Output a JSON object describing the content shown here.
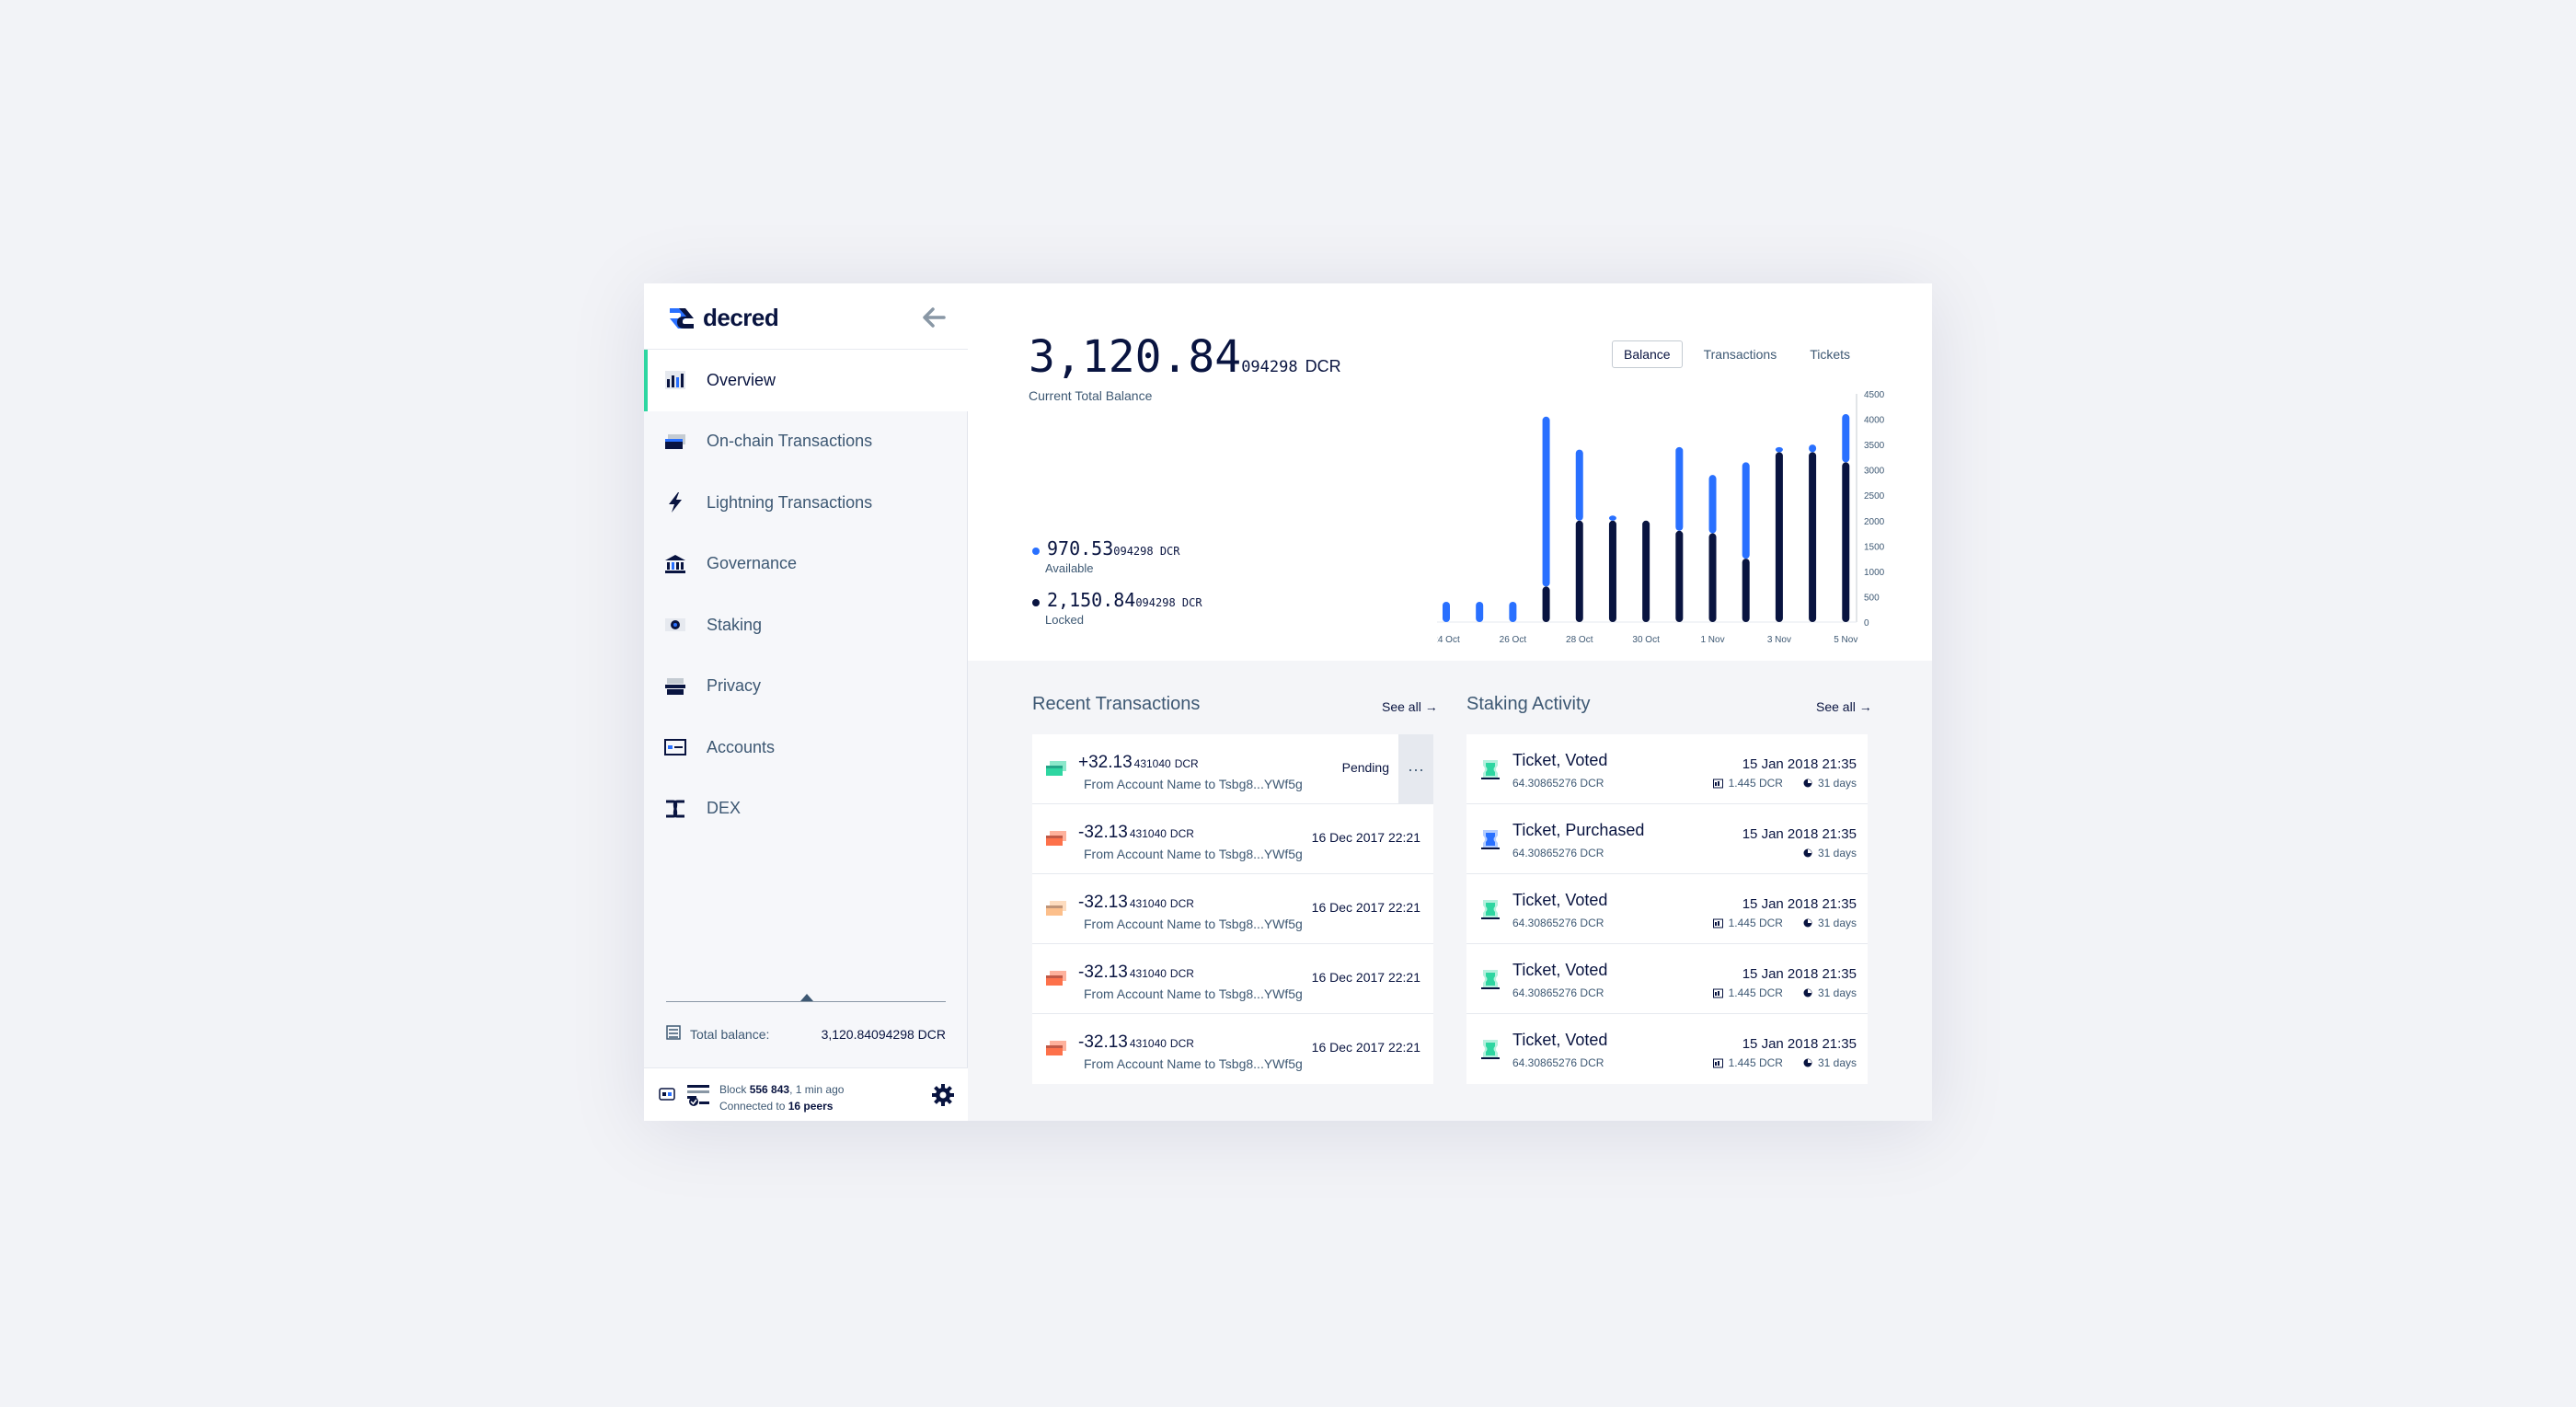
{
  "colors": {
    "navy": "#091440",
    "blue": "#2970ff",
    "turquoise": "#2ed6a1",
    "slate": "#3d5873",
    "received": "#2ed6a1",
    "sent": "#fd714a",
    "sent_light": "#fcbf8b"
  },
  "sidebar": {
    "logo_text": "decred",
    "collapse_icon": "arrow-left-icon",
    "items": [
      {
        "label": "Overview",
        "icon": "overview-icon",
        "active": true
      },
      {
        "label": "On-chain Transactions",
        "icon": "transactions-icon"
      },
      {
        "label": "Lightning Transactions",
        "icon": "lightning-icon"
      },
      {
        "label": "Governance",
        "icon": "governance-icon"
      },
      {
        "label": "Staking",
        "icon": "staking-icon"
      },
      {
        "label": "Privacy",
        "icon": "privacy-icon"
      },
      {
        "label": "Accounts",
        "icon": "accounts-icon"
      },
      {
        "label": "DEX",
        "icon": "dex-icon"
      }
    ],
    "total_balance_label": "Total balance:",
    "total_balance_value": "3,120.84094298 DCR",
    "status": {
      "block_prefix": "Block ",
      "block_number": "556 843",
      "block_suffix": ", 1 min ago",
      "peers_prefix": "Connected to ",
      "peers": "16 peers"
    }
  },
  "overview": {
    "balance_int": "3,120.84",
    "balance_dec": "094298",
    "balance_unit": "DCR",
    "balance_caption": "Current Total Balance",
    "available_int": "970.53",
    "available_dec": "094298 DCR",
    "available_label": "Available",
    "locked_int": "2,150.84",
    "locked_dec": "094298 DCR",
    "locked_label": "Locked"
  },
  "chart_tabs": [
    "Balance",
    "Transactions",
    "Tickets"
  ],
  "chart_data": {
    "type": "bar",
    "stacked": true,
    "categories": [
      "24 Oct",
      "25 Oct",
      "26 Oct",
      "27 Oct",
      "28 Oct",
      "29 Oct",
      "30 Oct",
      "31 Oct",
      "1 Nov",
      "2 Nov",
      "3 Nov",
      "4 Nov",
      "5 Nov"
    ],
    "x_tick_labels": [
      "24 Oct",
      "26 Oct",
      "28 Oct",
      "30 Oct",
      "1 Nov",
      "3 Nov",
      "5 Nov"
    ],
    "series": [
      {
        "key": "locked",
        "color": "#091440",
        "values": [
          0,
          0,
          0,
          700,
          2000,
          2000,
          2000,
          1800,
          1750,
          1250,
          3350,
          3350,
          3150
        ]
      },
      {
        "key": "available",
        "color": "#2970ff",
        "values": [
          400,
          400,
          400,
          3350,
          1400,
          100,
          0,
          1650,
          1150,
          1900,
          100,
          150,
          950
        ]
      }
    ],
    "y_ticks": [
      0,
      500,
      1000,
      1500,
      2000,
      2500,
      3000,
      3500,
      4000,
      4500
    ],
    "ylim": [
      0,
      4500
    ],
    "grid": false,
    "legend": "none"
  },
  "recent_transactions": {
    "title": "Recent Transactions",
    "see_all": "See all →",
    "pending_label": "Pending",
    "more_label": "···",
    "items": [
      {
        "amount": "+32.13",
        "decimals": "431040",
        "unit": "DCR",
        "desc": "From Account Name to Tsbg8...YWf5g",
        "date": "",
        "status": "Pending",
        "kind": "received"
      },
      {
        "amount": "-32.13",
        "decimals": "431040",
        "unit": "DCR",
        "desc": "From Account Name to Tsbg8...YWf5g",
        "date": "16 Dec 2017 22:21",
        "kind": "sent"
      },
      {
        "amount": "-32.13",
        "decimals": "431040",
        "unit": "DCR",
        "desc": "From Account Name to Tsbg8...YWf5g",
        "date": "16 Dec 2017 22:21",
        "kind": "sent-light"
      },
      {
        "amount": "-32.13",
        "decimals": "431040",
        "unit": "DCR",
        "desc": "From Account Name to Tsbg8...YWf5g",
        "date": "16 Dec 2017 22:21",
        "kind": "sent"
      },
      {
        "amount": "-32.13",
        "decimals": "431040",
        "unit": "DCR",
        "desc": "From Account Name to Tsbg8...YWf5g",
        "date": "16 Dec 2017 22:21",
        "kind": "sent"
      }
    ]
  },
  "staking_activity": {
    "title": "Staking Activity",
    "see_all": "See all →",
    "items": [
      {
        "title": "Ticket, Voted",
        "amount": "64.30865276 DCR",
        "date": "15 Jan 2018 21:35",
        "reward": "1.445 DCR",
        "days": "31 days",
        "kind": "voted"
      },
      {
        "title": "Ticket, Purchased",
        "amount": "64.30865276 DCR",
        "date": "15 Jan 2018 21:35",
        "reward": "",
        "days": "31 days",
        "kind": "purchased"
      },
      {
        "title": "Ticket, Voted",
        "amount": "64.30865276 DCR",
        "date": "15 Jan 2018 21:35",
        "reward": "1.445 DCR",
        "days": "31 days",
        "kind": "voted"
      },
      {
        "title": "Ticket, Voted",
        "amount": "64.30865276 DCR",
        "date": "15 Jan 2018 21:35",
        "reward": "1.445 DCR",
        "days": "31 days",
        "kind": "voted"
      },
      {
        "title": "Ticket, Voted",
        "amount": "64.30865276 DCR",
        "date": "15 Jan 2018 21:35",
        "reward": "1.445 DCR",
        "days": "31 days",
        "kind": "voted"
      }
    ]
  }
}
